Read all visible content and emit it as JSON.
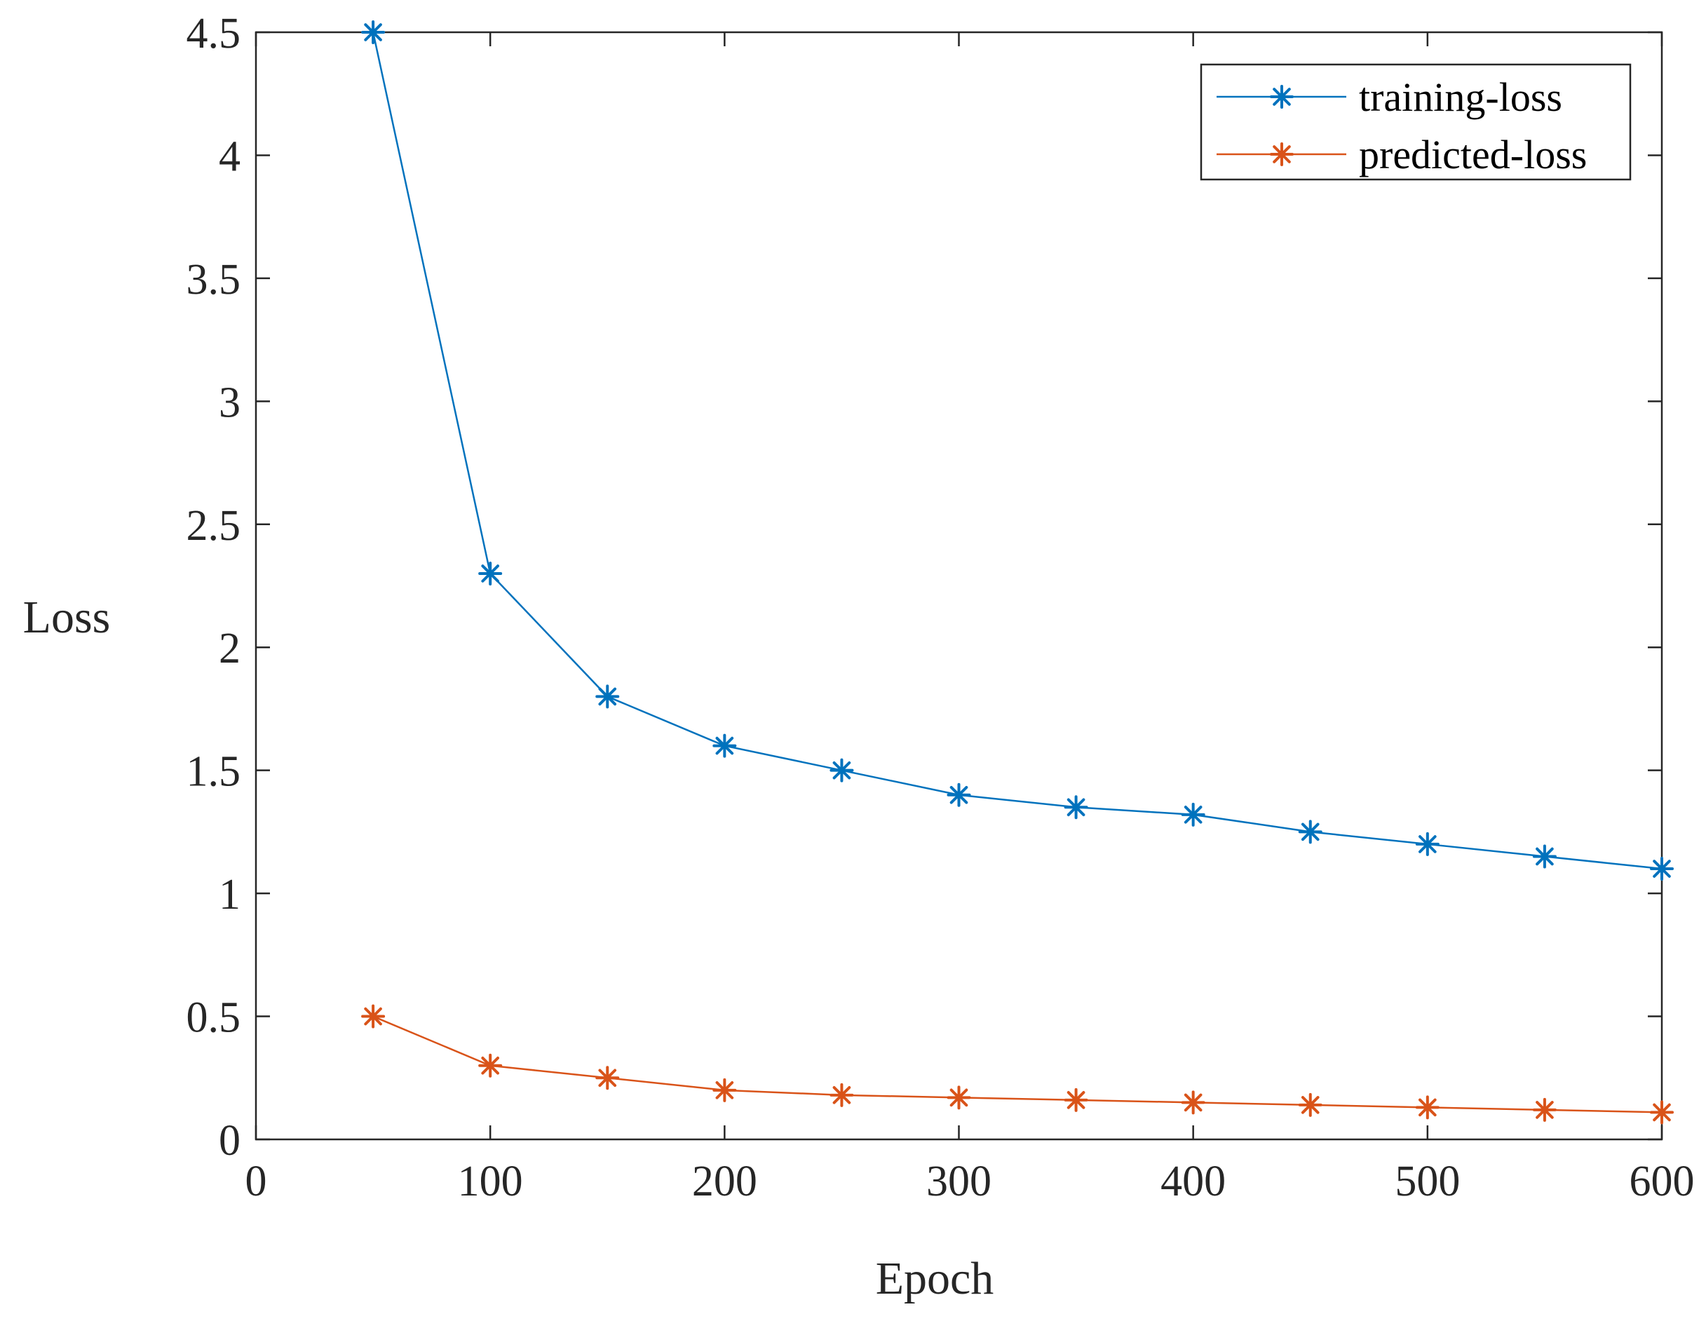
{
  "colors": {
    "series_training": "#0072BD",
    "series_predicted": "#D95319",
    "axis": "#262626",
    "legend_border": "#262626"
  },
  "chart_data": {
    "type": "line",
    "title": "",
    "xlabel": "Epoch",
    "ylabel": "Loss",
    "xlim": [
      0,
      600
    ],
    "ylim": [
      0,
      4.5
    ],
    "xticks": [
      0,
      100,
      200,
      300,
      400,
      500,
      600
    ],
    "xtick_labels": [
      "0",
      "100",
      "200",
      "300",
      "400",
      "500",
      "600"
    ],
    "yticks": [
      0,
      0.5,
      1,
      1.5,
      2,
      2.5,
      3,
      3.5,
      4,
      4.5
    ],
    "ytick_labels": [
      "0",
      "0.5",
      "1",
      "1.5",
      "2",
      "2.5",
      "3",
      "3.5",
      "4",
      "4.5"
    ],
    "grid": false,
    "marker": "asterisk",
    "legend_position": "top-right",
    "x": [
      50,
      100,
      150,
      200,
      250,
      300,
      350,
      400,
      450,
      500,
      550,
      600
    ],
    "series": [
      {
        "name": "training-loss",
        "color": "#0072BD",
        "values": [
          4.5,
          2.3,
          1.8,
          1.6,
          1.5,
          1.4,
          1.35,
          1.32,
          1.25,
          1.2,
          1.15,
          1.1
        ]
      },
      {
        "name": "predicted-loss",
        "color": "#D95319",
        "values": [
          0.5,
          0.3,
          0.25,
          0.2,
          0.18,
          0.17,
          0.16,
          0.15,
          0.14,
          0.13,
          0.12,
          0.11
        ]
      }
    ]
  }
}
